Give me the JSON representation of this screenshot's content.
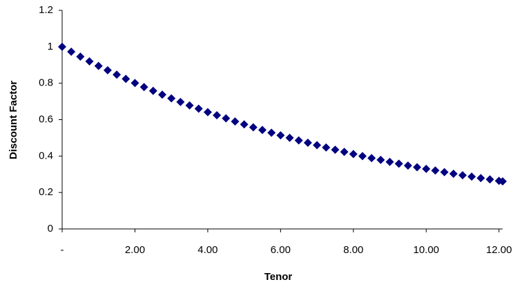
{
  "chart_data": {
    "type": "scatter",
    "x_label": "Tenor",
    "y_label": "Discount Factor",
    "x": [
      0,
      0.25,
      0.5,
      0.75,
      1,
      1.25,
      1.5,
      1.75,
      2,
      2.25,
      2.5,
      2.75,
      3,
      3.25,
      3.5,
      3.75,
      4,
      4.25,
      4.5,
      4.75,
      5,
      5.25,
      5.5,
      5.75,
      6,
      6.25,
      6.5,
      6.75,
      7,
      7.25,
      7.5,
      7.75,
      8,
      8.25,
      8.5,
      8.75,
      9,
      9.25,
      9.5,
      9.75,
      10,
      10.25,
      10.5,
      10.75,
      11,
      11.25,
      11.5,
      11.75,
      12,
      12.1
    ],
    "series": [
      {
        "name": "Discount Factor",
        "color": "#000080",
        "values": [
          1.0,
          0.973,
          0.946,
          0.92,
          0.895,
          0.871,
          0.847,
          0.824,
          0.801,
          0.779,
          0.758,
          0.737,
          0.717,
          0.697,
          0.678,
          0.66,
          0.641,
          0.624,
          0.607,
          0.59,
          0.574,
          0.558,
          0.543,
          0.528,
          0.514,
          0.5,
          0.486,
          0.473,
          0.46,
          0.447,
          0.435,
          0.423,
          0.411,
          0.4,
          0.389,
          0.379,
          0.368,
          0.358,
          0.348,
          0.339,
          0.33,
          0.321,
          0.312,
          0.303,
          0.295,
          0.287,
          0.279,
          0.272,
          0.264,
          0.261
        ]
      }
    ],
    "xlim": [
      0,
      12.1
    ],
    "xticks": [
      {
        "value": 0,
        "label": "-"
      },
      {
        "value": 2,
        "label": "2.00"
      },
      {
        "value": 4,
        "label": "4.00"
      },
      {
        "value": 6,
        "label": "6.00"
      },
      {
        "value": 8,
        "label": "8.00"
      },
      {
        "value": 10,
        "label": "10.00"
      },
      {
        "value": 12,
        "label": "12.00"
      }
    ],
    "ylim": [
      0,
      1.2
    ],
    "yticks": [
      0,
      0.2,
      0.4,
      0.6,
      0.8,
      1,
      1.2
    ],
    "grid": false
  }
}
